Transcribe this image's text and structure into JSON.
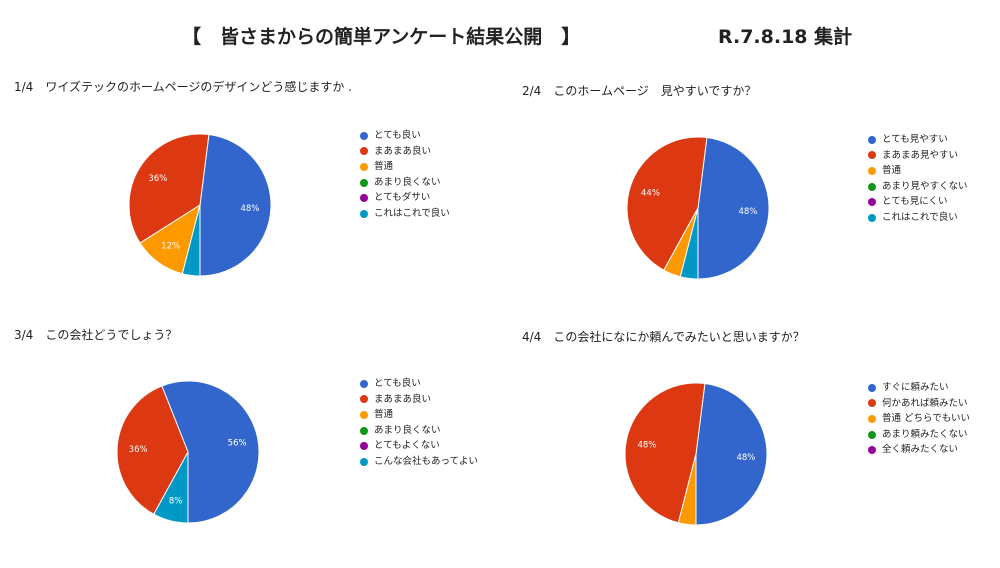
{
  "header": {
    "title": "【　皆さまからの簡単アンケート結果公開　】",
    "date": "R.7.8.18 集計"
  },
  "colors": {
    "blue": "#3366cc",
    "red": "#dc3912",
    "orange": "#ff9900",
    "green": "#109618",
    "purple": "#990099",
    "teal": "#0099c6"
  },
  "chart_data": [
    {
      "type": "pie",
      "title": "1/4　ワイズテックのホームページのデザインどう感じますか .",
      "labels": [
        "とても良い",
        "まあまあ良い",
        "普通",
        "あまり良くない",
        "とてもダサい",
        "これはこれで良い"
      ],
      "values": [
        48,
        36,
        12,
        0,
        0,
        4
      ],
      "data_labels": [
        "48%",
        "36%",
        "12%",
        "",
        "",
        ""
      ],
      "colors": [
        "#3366cc",
        "#dc3912",
        "#ff9900",
        "#109618",
        "#990099",
        "#0099c6"
      ]
    },
    {
      "type": "pie",
      "title": "2/4　このホームページ　見やすいですか？",
      "labels": [
        "とても見やすい",
        "まあまあ見やすい",
        "普通",
        "あまり見やすくない",
        "とても見にくい",
        "これはこれで良い"
      ],
      "values": [
        48,
        44,
        4,
        0,
        0,
        4
      ],
      "data_labels": [
        "48%",
        "44%",
        "",
        "",
        "",
        ""
      ],
      "colors": [
        "#3366cc",
        "#dc3912",
        "#ff9900",
        "#109618",
        "#990099",
        "#0099c6"
      ]
    },
    {
      "type": "pie",
      "title": "3/4　この会社どうでしょう？",
      "labels": [
        "とても良い",
        "まあまあ良い",
        "普通",
        "あまり良くない",
        "とてもよくない",
        "こんな会社もあってよい"
      ],
      "values": [
        56,
        36,
        0,
        0,
        0,
        8
      ],
      "data_labels": [
        "56%",
        "36%",
        "",
        "",
        "",
        "8%"
      ],
      "colors": [
        "#3366cc",
        "#dc3912",
        "#ff9900",
        "#109618",
        "#990099",
        "#0099c6"
      ]
    },
    {
      "type": "pie",
      "title": "4/4　この会社になにか頼んでみたいと思いますか？",
      "labels": [
        "すぐに頼みたい",
        "何かあれば頼みたい",
        "普通 どちらでもいい",
        "あまり頼みたくない",
        "全く頼みたくない"
      ],
      "values": [
        48,
        48,
        4,
        0,
        0
      ],
      "data_labels": [
        "48%",
        "48%",
        "",
        "",
        ""
      ],
      "colors": [
        "#3366cc",
        "#dc3912",
        "#ff9900",
        "#109618",
        "#990099"
      ]
    }
  ]
}
